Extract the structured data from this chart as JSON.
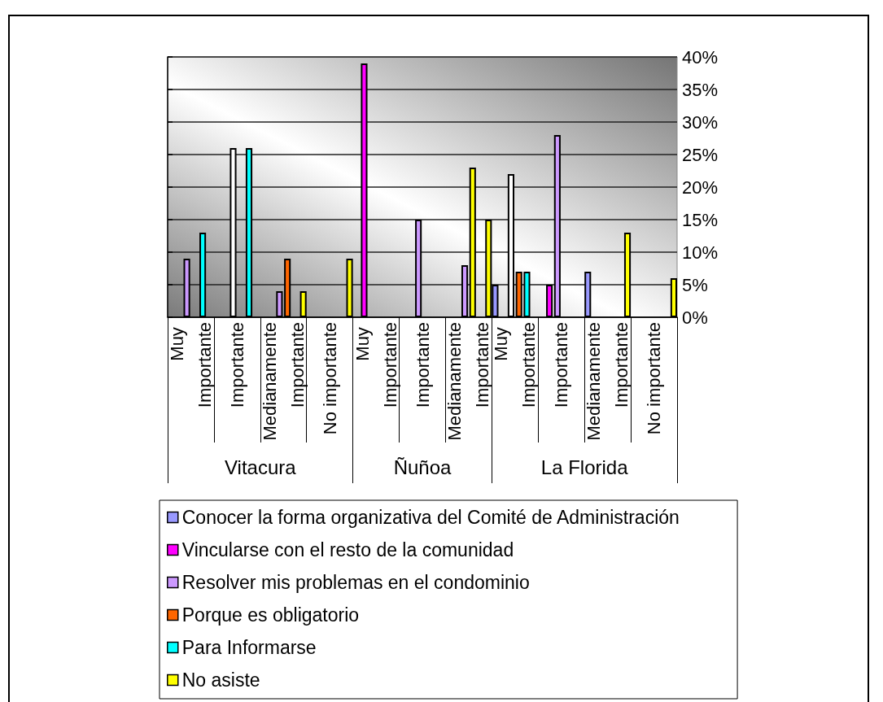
{
  "chart_data": {
    "type": "bar",
    "categories": [
      "Muy Importante",
      "Importante",
      "Medianamente Importante",
      "No importante",
      "Muy Importante",
      "Importante",
      "Medianamente Importante",
      "Muy Importante",
      "Importante",
      "Medianamente Importante",
      "No importante"
    ],
    "series": [
      {
        "name": "Conocer la forma organizativa del Comité de Administración",
        "color": "#9999ff",
        "values": [
          null,
          null,
          null,
          null,
          null,
          null,
          null,
          5,
          null,
          7,
          null
        ]
      },
      {
        "name": "Vincularse con el resto de la comunidad",
        "color": "#ff00ff",
        "values": [
          null,
          null,
          null,
          null,
          39,
          null,
          null,
          null,
          5,
          null,
          null
        ]
      },
      {
        "name": "Resolver mis problemas en el condominio",
        "color": "#cc99ff",
        "colors": [
          "#cc99ff",
          "#ffffff",
          "#cc99ff",
          null,
          null,
          "#cc99ff",
          "#cc99ff",
          "#ffffff",
          "#cc99ff",
          null,
          null
        ],
        "values": [
          9,
          26,
          4,
          null,
          null,
          15,
          8,
          22,
          28,
          null,
          null
        ]
      },
      {
        "name": "Porque es obligatorio",
        "color": "#ff6600",
        "colors": [
          null,
          null,
          "#ff6600",
          null,
          null,
          null,
          "#ffff00",
          "#ff6600",
          null,
          null,
          null
        ],
        "values": [
          null,
          null,
          9,
          null,
          null,
          null,
          23,
          7,
          null,
          null,
          null
        ]
      },
      {
        "name": "Para Informarse",
        "color": "#00ffff",
        "values": [
          13,
          26,
          null,
          null,
          null,
          null,
          null,
          7,
          null,
          null,
          null
        ]
      },
      {
        "name": "No asiste",
        "color": "#ffff00",
        "values": [
          null,
          null,
          4,
          9,
          null,
          null,
          15,
          null,
          null,
          13,
          6
        ]
      }
    ],
    "ylim": [
      0,
      40
    ],
    "yticks": [
      {
        "value": 0,
        "label": "0%"
      },
      {
        "value": 5,
        "label": "5%"
      },
      {
        "value": 10,
        "label": "10%"
      },
      {
        "value": 15,
        "label": "15%"
      },
      {
        "value": 20,
        "label": "20%"
      },
      {
        "value": 25,
        "label": "25%"
      },
      {
        "value": 30,
        "label": "30%"
      },
      {
        "value": 35,
        "label": "35%"
      },
      {
        "value": 40,
        "label": "40%"
      }
    ],
    "grid": "y",
    "legend": "bottom",
    "annotations": [
      "Vitacura",
      "Ñuñoa",
      "La Florida"
    ]
  }
}
